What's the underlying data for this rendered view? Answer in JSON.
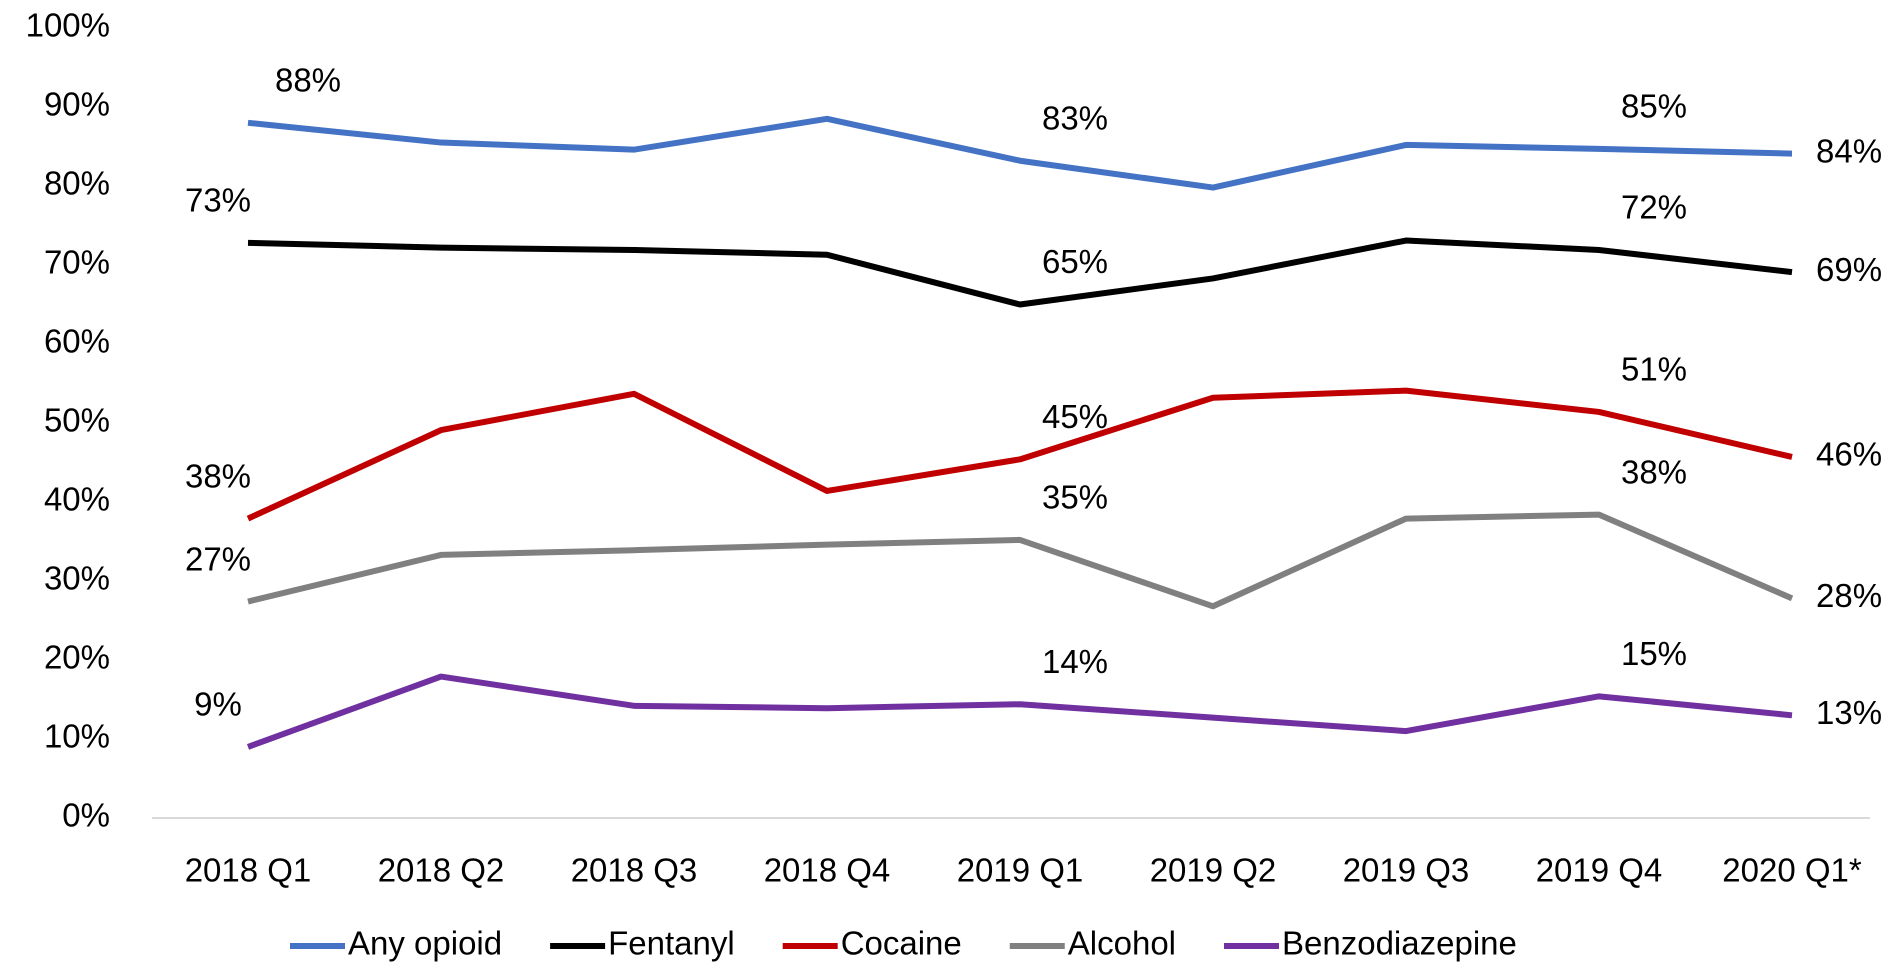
{
  "chart_data": {
    "type": "line",
    "categories": [
      "2018 Q1",
      "2018 Q2",
      "2018 Q3",
      "2018 Q4",
      "2019 Q1",
      "2019 Q2",
      "2019 Q3",
      "2019 Q4",
      "2020 Q1*"
    ],
    "series": [
      {
        "name": "Any opioid",
        "color": "#4472c4",
        "values": [
          88,
          85.5,
          84.6,
          88.5,
          83.2,
          79.8,
          85.2,
          84.7,
          84.1
        ],
        "value_labels": [
          "88%",
          null,
          null,
          null,
          "83%",
          null,
          null,
          "85%",
          "84%"
        ]
      },
      {
        "name": "Fentanyl",
        "color": "#000000",
        "values": [
          72.8,
          72.2,
          71.9,
          71.3,
          65,
          68.3,
          73.1,
          71.9,
          69.1
        ],
        "value_labels": [
          "73%",
          null,
          null,
          null,
          "65%",
          null,
          null,
          "72%",
          "69%"
        ]
      },
      {
        "name": "Cocaine",
        "color": "#c00000",
        "values": [
          37.9,
          49.1,
          53.7,
          41.4,
          45.4,
          53.2,
          54.1,
          51.4,
          45.7
        ],
        "value_labels": [
          "38%",
          null,
          null,
          null,
          "45%",
          null,
          null,
          "51%",
          "46%"
        ]
      },
      {
        "name": "Alcohol",
        "color": "#808080",
        "values": [
          27.4,
          33.3,
          33.9,
          34.6,
          35.2,
          26.8,
          37.9,
          38.4,
          27.8
        ],
        "value_labels": [
          "27%",
          null,
          null,
          null,
          "35%",
          null,
          null,
          "38%",
          "28%"
        ]
      },
      {
        "name": "Benzodiazepine",
        "color": "#7030a0",
        "values": [
          9,
          17.9,
          14.2,
          13.9,
          14.4,
          12.7,
          11,
          15.4,
          13
        ],
        "value_labels": [
          "9%",
          null,
          null,
          null,
          "14%",
          null,
          null,
          "15%",
          "13%"
        ]
      }
    ],
    "ylim": [
      0,
      100
    ],
    "yticks": [
      {
        "value": 0,
        "label": "0%"
      },
      {
        "value": 10,
        "label": "10%"
      },
      {
        "value": 20,
        "label": "20%"
      },
      {
        "value": 30,
        "label": "30%"
      },
      {
        "value": 40,
        "label": "40%"
      },
      {
        "value": 50,
        "label": "50%"
      },
      {
        "value": 60,
        "label": "60%"
      },
      {
        "value": 70,
        "label": "70%"
      },
      {
        "value": 80,
        "label": "80%"
      },
      {
        "value": 90,
        "label": "90%"
      },
      {
        "value": 100,
        "label": "100%"
      }
    ],
    "grid": false,
    "legend": "bottom"
  }
}
